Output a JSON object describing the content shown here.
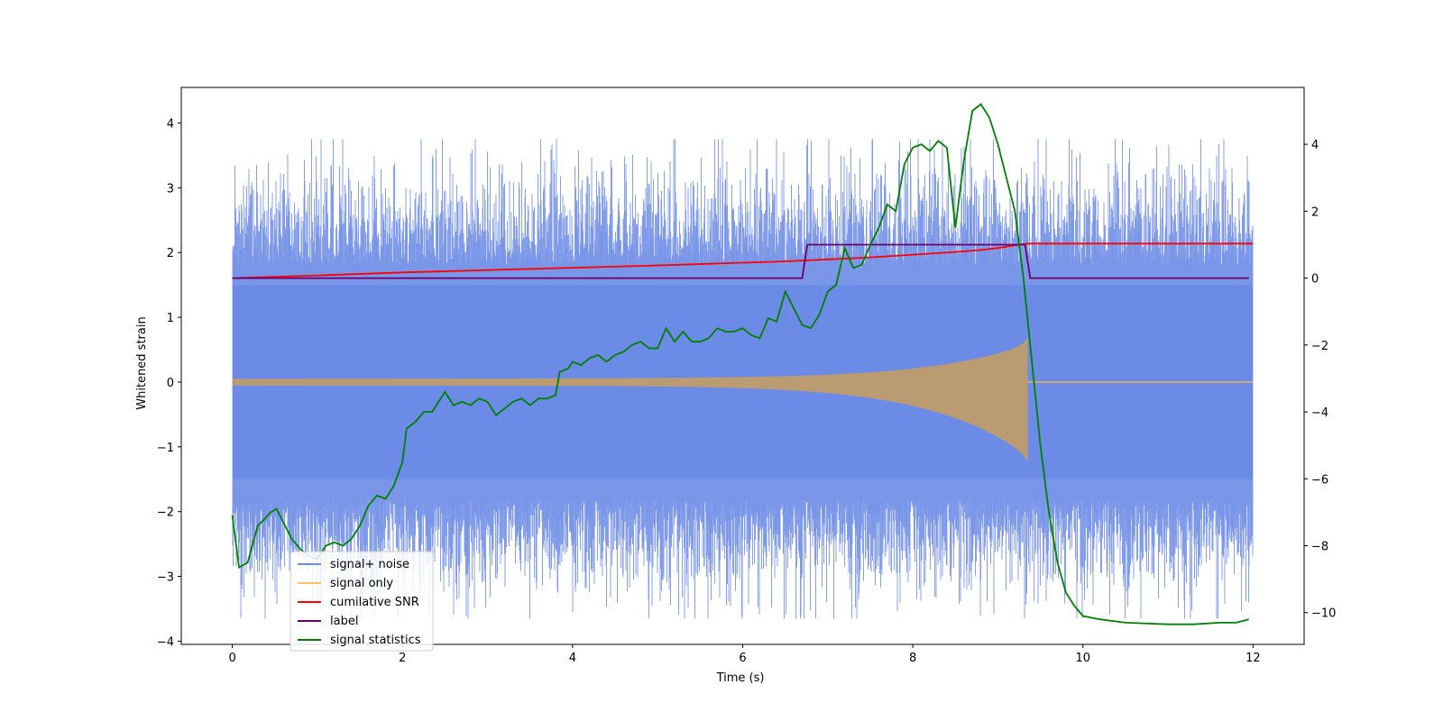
{
  "chart_data": {
    "type": "line",
    "title": "",
    "xlabel": "Time (s)",
    "ylabel": "Whitened strain",
    "xlim": [
      -0.6,
      12.6
    ],
    "ylim": [
      -4.05,
      4.55
    ],
    "y2lim": [
      -10.95,
      5.7
    ],
    "xticks": [
      0,
      2,
      4,
      6,
      8,
      10,
      12
    ],
    "yticks": [
      -4,
      -3,
      -2,
      -1,
      0,
      1,
      2,
      3,
      4
    ],
    "y2ticks": [
      -10,
      -8,
      -6,
      -4,
      -2,
      0,
      2,
      4
    ],
    "grid": false,
    "legend_position": "lower-left",
    "colors": {
      "signal_noise": "#6b8be6",
      "signal_only": "#ffbf66",
      "cumulative_snr": "#ff0000",
      "label": "#6a006a",
      "signal_statistics": "#008000"
    },
    "series": [
      {
        "name": "signal+ noise",
        "axis": "left",
        "kind": "noise-band",
        "t_range": [
          0,
          12
        ],
        "envelope_typical": 1.8,
        "envelope_max": 3.75,
        "envelope_min": -3.65
      },
      {
        "name": "signal only",
        "axis": "left",
        "kind": "chirp",
        "t_range": [
          0,
          12
        ],
        "merger_time": 9.35,
        "amplitude_start": 0.05,
        "amplitude_peak_positive": 0.85,
        "amplitude_peak_negative": -1.5
      },
      {
        "name": "cumilative SNR",
        "axis": "right",
        "x": [
          0,
          1,
          2,
          3,
          4,
          5,
          6,
          6.5,
          7,
          7.5,
          8,
          8.5,
          8.8,
          9,
          9.2,
          9.35,
          9.36,
          12
        ],
        "values": [
          0,
          0.08,
          0.17,
          0.24,
          0.31,
          0.38,
          0.46,
          0.5,
          0.56,
          0.62,
          0.7,
          0.78,
          0.84,
          0.9,
          0.98,
          1.03,
          1.03,
          1.03
        ]
      },
      {
        "name": "label",
        "axis": "right",
        "x": [
          0,
          6.7,
          6.76,
          9.32,
          9.38,
          11.95
        ],
        "values": [
          0,
          0,
          1,
          1,
          0,
          0
        ]
      },
      {
        "name": "signal statistics",
        "axis": "right",
        "x": [
          0,
          0.08,
          0.18,
          0.3,
          0.38,
          0.45,
          0.52,
          0.6,
          0.7,
          0.8,
          0.9,
          1,
          1.1,
          1.2,
          1.3,
          1.4,
          1.5,
          1.6,
          1.7,
          1.8,
          1.9,
          2,
          2.05,
          2.15,
          2.25,
          2.35,
          2.45,
          2.5,
          2.6,
          2.7,
          2.8,
          2.9,
          3,
          3.1,
          3.2,
          3.3,
          3.4,
          3.5,
          3.6,
          3.7,
          3.8,
          3.85,
          3.95,
          4,
          4.1,
          4.2,
          4.3,
          4.4,
          4.5,
          4.6,
          4.7,
          4.8,
          4.9,
          5,
          5.1,
          5.2,
          5.3,
          5.4,
          5.5,
          5.6,
          5.7,
          5.8,
          5.9,
          6,
          6.1,
          6.2,
          6.3,
          6.4,
          6.5,
          6.6,
          6.7,
          6.8,
          6.9,
          7,
          7.1,
          7.2,
          7.3,
          7.4,
          7.5,
          7.6,
          7.7,
          7.8,
          7.9,
          8,
          8.1,
          8.2,
          8.3,
          8.4,
          8.5,
          8.6,
          8.7,
          8.8,
          8.9,
          9,
          9.1,
          9.2,
          9.3,
          9.4,
          9.5,
          9.6,
          9.7,
          9.8,
          9.9,
          10,
          10.2,
          10.5,
          11,
          11.3,
          11.6,
          11.8,
          11.95
        ],
        "values": [
          -7.1,
          -8.65,
          -8.5,
          -7.4,
          -7.2,
          -7.0,
          -6.9,
          -7.3,
          -7.8,
          -8.1,
          -8.3,
          -8.4,
          -8.0,
          -7.9,
          -8.0,
          -7.8,
          -7.4,
          -6.8,
          -6.5,
          -6.6,
          -6.2,
          -5.5,
          -4.5,
          -4.3,
          -4.0,
          -4.0,
          -3.6,
          -3.4,
          -3.8,
          -3.7,
          -3.8,
          -3.6,
          -3.7,
          -4.1,
          -3.9,
          -3.7,
          -3.6,
          -3.8,
          -3.6,
          -3.6,
          -3.5,
          -2.8,
          -2.7,
          -2.5,
          -2.6,
          -2.4,
          -2.3,
          -2.5,
          -2.3,
          -2.2,
          -2.0,
          -1.9,
          -2.1,
          -2.1,
          -1.5,
          -1.9,
          -1.6,
          -1.9,
          -1.9,
          -1.8,
          -1.5,
          -1.6,
          -1.6,
          -1.5,
          -1.7,
          -1.8,
          -1.2,
          -1.3,
          -0.4,
          -0.9,
          -1.4,
          -1.5,
          -1.1,
          -0.4,
          -0.2,
          0.9,
          0.3,
          0.4,
          1.0,
          1.5,
          2.2,
          2.0,
          3.4,
          3.9,
          4.0,
          3.8,
          4.1,
          3.9,
          1.5,
          3.5,
          5.0,
          5.2,
          4.8,
          4.0,
          3.0,
          2.0,
          0.0,
          -2.5,
          -5.0,
          -7.0,
          -8.5,
          -9.4,
          -9.8,
          -10.1,
          -10.2,
          -10.3,
          -10.35,
          -10.35,
          -10.3,
          -10.3,
          -10.2
        ]
      }
    ],
    "legend": [
      {
        "label": "signal+ noise",
        "color": "#6b8be6"
      },
      {
        "label": "signal only",
        "color": "#ffbf66"
      },
      {
        "label": "cumilative SNR",
        "color": "#ff0000"
      },
      {
        "label": "label",
        "color": "#6a006a"
      },
      {
        "label": "signal statistics",
        "color": "#008000"
      }
    ]
  }
}
